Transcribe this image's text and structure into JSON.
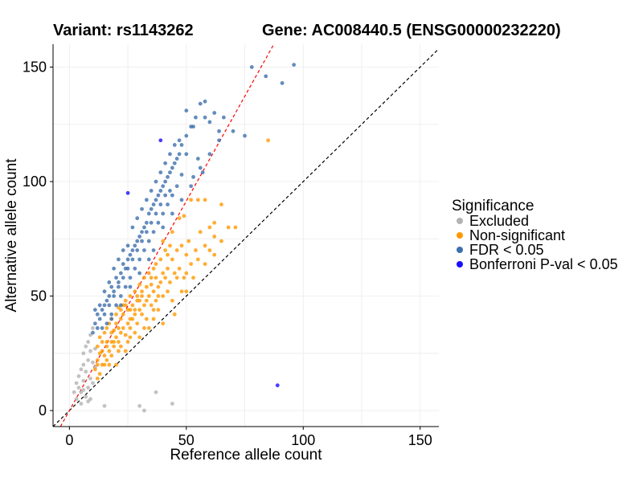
{
  "chart_data": {
    "type": "scatter",
    "title_left": "Variant: rs1143262",
    "title_right": "Gene: AC008440.5 (ENSG00000232220)",
    "xlabel": "Reference allele count",
    "ylabel": "Alternative allele count",
    "xlim": [
      -7,
      158
    ],
    "ylim": [
      -7,
      160
    ],
    "xticks": [
      0,
      50,
      100,
      150
    ],
    "yticks": [
      0,
      50,
      100,
      150
    ],
    "xtick_labels": [
      "0",
      "50",
      "100",
      "150"
    ],
    "ytick_labels": [
      "0",
      "50",
      "100",
      "150"
    ],
    "grid": true,
    "reference_lines": [
      {
        "name": "identity",
        "slope": 1.0,
        "intercept": 0,
        "color": "#000000",
        "style": "dashed"
      },
      {
        "name": "fit",
        "slope": 1.83,
        "intercept": 0,
        "color": "#ff0000",
        "style": "dashed"
      }
    ],
    "legend": {
      "title": "Significance",
      "position": "right",
      "entries": [
        {
          "label": "Excluded",
          "color": "#b3b3b3"
        },
        {
          "label": "Non-significant",
          "color": "#ff9900"
        },
        {
          "label": "FDR < 0.05",
          "color": "#3d6fad"
        },
        {
          "label": "Bonferroni P-val < 0.05",
          "color": "#1a0dff"
        }
      ]
    },
    "series": [
      {
        "name": "Excluded",
        "color": "#b3b3b3",
        "points": [
          [
            2,
            8
          ],
          [
            3,
            12
          ],
          [
            4,
            10
          ],
          [
            4,
            15
          ],
          [
            5,
            18
          ],
          [
            5,
            8
          ],
          [
            6,
            20
          ],
          [
            6,
            13
          ],
          [
            6,
            25
          ],
          [
            7,
            17
          ],
          [
            7,
            28
          ],
          [
            7,
            6
          ],
          [
            8,
            22
          ],
          [
            8,
            30
          ],
          [
            8,
            10
          ],
          [
            9,
            26
          ],
          [
            9,
            33
          ],
          [
            9,
            14
          ],
          [
            10,
            21
          ],
          [
            10,
            36
          ],
          [
            10,
            12
          ],
          [
            11,
            27
          ],
          [
            11,
            19
          ],
          [
            5,
            3
          ],
          [
            8,
            4
          ],
          [
            15,
            2
          ],
          [
            30,
            2
          ],
          [
            32,
            0
          ],
          [
            37,
            8
          ],
          [
            44,
            3
          ],
          [
            3,
            5
          ],
          [
            6,
            9
          ],
          [
            9,
            5
          ]
        ]
      },
      {
        "name": "Non-significant",
        "color": "#ff9900",
        "points": [
          [
            11,
            18
          ],
          [
            12,
            22
          ],
          [
            12,
            28
          ],
          [
            13,
            25
          ],
          [
            13,
            32
          ],
          [
            14,
            20
          ],
          [
            14,
            30
          ],
          [
            15,
            24
          ],
          [
            15,
            34
          ],
          [
            16,
            28
          ],
          [
            16,
            36
          ],
          [
            17,
            26
          ],
          [
            17,
            38
          ],
          [
            18,
            30
          ],
          [
            18,
            40
          ],
          [
            19,
            28
          ],
          [
            19,
            35
          ],
          [
            20,
            32
          ],
          [
            20,
            42
          ],
          [
            21,
            30
          ],
          [
            21,
            45
          ],
          [
            22,
            34
          ],
          [
            22,
            40
          ],
          [
            23,
            36
          ],
          [
            23,
            46
          ],
          [
            24,
            33
          ],
          [
            24,
            48
          ],
          [
            25,
            38
          ],
          [
            25,
            44
          ],
          [
            26,
            36
          ],
          [
            26,
            50
          ],
          [
            27,
            40
          ],
          [
            27,
            46
          ],
          [
            28,
            42
          ],
          [
            28,
            52
          ],
          [
            29,
            38
          ],
          [
            29,
            48
          ],
          [
            30,
            44
          ],
          [
            30,
            55
          ],
          [
            31,
            42
          ],
          [
            31,
            50
          ],
          [
            32,
            46
          ],
          [
            32,
            58
          ],
          [
            33,
            48
          ],
          [
            33,
            40
          ],
          [
            34,
            50
          ],
          [
            34,
            60
          ],
          [
            35,
            46
          ],
          [
            35,
            55
          ],
          [
            36,
            52
          ],
          [
            36,
            62
          ],
          [
            37,
            48
          ],
          [
            37,
            58
          ],
          [
            38,
            54
          ],
          [
            38,
            44
          ],
          [
            39,
            56
          ],
          [
            40,
            60
          ],
          [
            40,
            50
          ],
          [
            41,
            58
          ],
          [
            42,
            62
          ],
          [
            42,
            52
          ],
          [
            43,
            56
          ],
          [
            44,
            66
          ],
          [
            45,
            60
          ],
          [
            46,
            70
          ],
          [
            47,
            62
          ],
          [
            48,
            72
          ],
          [
            49,
            58
          ],
          [
            50,
            68
          ],
          [
            51,
            74
          ],
          [
            52,
            64
          ],
          [
            54,
            70
          ],
          [
            56,
            78
          ],
          [
            58,
            72
          ],
          [
            60,
            80
          ],
          [
            62,
            76
          ],
          [
            48,
            52
          ],
          [
            50,
            60
          ],
          [
            53,
            58
          ],
          [
            55,
            66
          ],
          [
            58,
            64
          ],
          [
            60,
            70
          ],
          [
            62,
            68
          ],
          [
            65,
            74
          ],
          [
            68,
            80
          ],
          [
            71,
            80
          ],
          [
            50,
            52
          ],
          [
            45,
            42
          ],
          [
            40,
            38
          ],
          [
            36,
            40
          ],
          [
            32,
            36
          ],
          [
            28,
            34
          ],
          [
            25,
            30
          ],
          [
            22,
            28
          ],
          [
            18,
            24
          ],
          [
            15,
            20
          ],
          [
            13,
            16
          ],
          [
            12,
            14
          ],
          [
            20,
            20
          ],
          [
            24,
            26
          ],
          [
            30,
            32
          ],
          [
            34,
            36
          ],
          [
            44,
            48
          ],
          [
            85,
            118
          ],
          [
            47,
            84
          ],
          [
            49,
            85
          ],
          [
            44,
            78
          ],
          [
            62,
            82
          ],
          [
            65,
            90
          ],
          [
            40,
            74
          ],
          [
            42,
            68
          ],
          [
            52,
            92
          ],
          [
            58,
            92
          ],
          [
            55,
            92
          ],
          [
            19,
            30
          ],
          [
            21,
            36
          ],
          [
            23,
            42
          ],
          [
            26,
            44
          ],
          [
            29,
            50
          ],
          [
            31,
            52
          ],
          [
            33,
            54
          ],
          [
            35,
            58
          ],
          [
            37,
            64
          ],
          [
            39,
            66
          ],
          [
            41,
            70
          ],
          [
            43,
            72
          ],
          [
            14,
            26
          ],
          [
            16,
            30
          ],
          [
            18,
            34
          ],
          [
            20,
            38
          ],
          [
            22,
            44
          ],
          [
            24,
            46
          ],
          [
            26,
            40
          ],
          [
            28,
            44
          ],
          [
            30,
            48
          ],
          [
            16,
            22
          ],
          [
            26,
            32
          ],
          [
            36,
            44
          ],
          [
            46,
            58
          ],
          [
            38,
            50
          ],
          [
            12,
            20
          ],
          [
            17,
            20
          ],
          [
            21,
            26
          ]
        ]
      },
      {
        "name": "FDR < 0.05",
        "color": "#3d6fad",
        "points": [
          [
            10,
            34
          ],
          [
            11,
            38
          ],
          [
            12,
            42
          ],
          [
            13,
            40
          ],
          [
            14,
            44
          ],
          [
            15,
            46
          ],
          [
            16,
            48
          ],
          [
            17,
            50
          ],
          [
            18,
            54
          ],
          [
            19,
            52
          ],
          [
            20,
            58
          ],
          [
            21,
            56
          ],
          [
            22,
            60
          ],
          [
            23,
            64
          ],
          [
            24,
            62
          ],
          [
            25,
            66
          ],
          [
            26,
            68
          ],
          [
            27,
            70
          ],
          [
            28,
            72
          ],
          [
            29,
            74
          ],
          [
            30,
            76
          ],
          [
            31,
            78
          ],
          [
            32,
            80
          ],
          [
            33,
            82
          ],
          [
            34,
            86
          ],
          [
            35,
            88
          ],
          [
            36,
            90
          ],
          [
            37,
            92
          ],
          [
            38,
            94
          ],
          [
            39,
            96
          ],
          [
            40,
            98
          ],
          [
            41,
            100
          ],
          [
            42,
            102
          ],
          [
            43,
            104
          ],
          [
            44,
            106
          ],
          [
            45,
            108
          ],
          [
            46,
            110
          ],
          [
            47,
            112
          ],
          [
            48,
            116
          ],
          [
            50,
            120
          ],
          [
            52,
            124
          ],
          [
            54,
            128
          ],
          [
            56,
            134
          ],
          [
            58,
            128
          ],
          [
            60,
            126
          ],
          [
            62,
            130
          ],
          [
            64,
            122
          ],
          [
            66,
            128
          ],
          [
            70,
            122
          ],
          [
            75,
            120
          ],
          [
            78,
            150
          ],
          [
            84,
            146
          ],
          [
            91,
            143
          ],
          [
            96,
            151
          ],
          [
            50,
            131
          ],
          [
            53,
            124
          ],
          [
            58,
            135
          ],
          [
            48,
            103
          ],
          [
            50,
            112
          ],
          [
            53,
            102
          ],
          [
            55,
            110
          ],
          [
            57,
            104
          ],
          [
            46,
            98
          ],
          [
            44,
            94
          ],
          [
            42,
            90
          ],
          [
            40,
            86
          ],
          [
            38,
            82
          ],
          [
            36,
            78
          ],
          [
            34,
            74
          ],
          [
            32,
            70
          ],
          [
            30,
            66
          ],
          [
            28,
            62
          ],
          [
            26,
            58
          ],
          [
            24,
            54
          ],
          [
            22,
            50
          ],
          [
            20,
            46
          ],
          [
            18,
            42
          ],
          [
            16,
            38
          ],
          [
            14,
            36
          ],
          [
            25,
            72
          ],
          [
            23,
            70
          ],
          [
            21,
            66
          ],
          [
            19,
            62
          ],
          [
            17,
            56
          ],
          [
            15,
            52
          ],
          [
            13,
            46
          ],
          [
            12,
            36
          ],
          [
            11,
            44
          ],
          [
            27,
            80
          ],
          [
            29,
            84
          ],
          [
            31,
            88
          ],
          [
            33,
            92
          ],
          [
            35,
            96
          ],
          [
            37,
            100
          ],
          [
            39,
            104
          ],
          [
            41,
            108
          ],
          [
            43,
            112
          ],
          [
            45,
            116
          ],
          [
            47,
            118
          ],
          [
            43,
            96
          ],
          [
            41,
            94
          ],
          [
            39,
            90
          ],
          [
            37,
            86
          ],
          [
            35,
            82
          ],
          [
            33,
            78
          ],
          [
            31,
            74
          ],
          [
            29,
            70
          ],
          [
            27,
            66
          ],
          [
            25,
            62
          ],
          [
            23,
            58
          ],
          [
            21,
            54
          ],
          [
            19,
            50
          ],
          [
            17,
            46
          ],
          [
            15,
            42
          ],
          [
            36,
            70
          ],
          [
            34,
            66
          ],
          [
            30,
            60
          ],
          [
            26,
            54
          ],
          [
            22,
            46
          ],
          [
            18,
            40
          ],
          [
            40,
            80
          ],
          [
            44,
            86
          ],
          [
            48,
            92
          ],
          [
            52,
            98
          ],
          [
            56,
            106
          ],
          [
            60,
            112
          ],
          [
            64,
            118
          ]
        ]
      },
      {
        "name": "Bonferroni P-val < 0.05",
        "color": "#1a0dff",
        "points": [
          [
            25,
            95
          ],
          [
            39,
            118
          ],
          [
            89,
            11
          ]
        ]
      }
    ]
  }
}
